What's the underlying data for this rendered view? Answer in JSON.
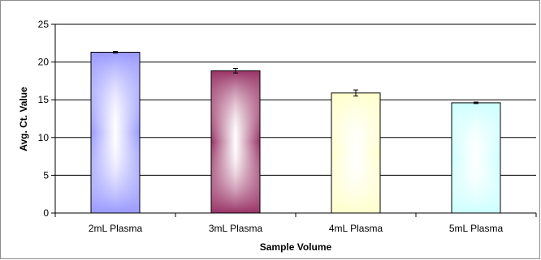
{
  "chart_data": {
    "type": "bar",
    "title": "",
    "xlabel": "Sample Volume",
    "ylabel": "Avg. Ct. Value",
    "ylim": [
      0,
      25
    ],
    "yticks": [
      0,
      5,
      10,
      15,
      20,
      25
    ],
    "grid": "horizontal",
    "categories": [
      "2mL Plasma",
      "3mL Plasma",
      "4mL Plasma",
      "5mL Plasma"
    ],
    "values": [
      21.3,
      18.85,
      15.9,
      14.6
    ],
    "errors": [
      0.1,
      0.3,
      0.4,
      0.1
    ],
    "colors": [
      "#9999ff",
      "#993366",
      "#ffffcc",
      "#ccffff"
    ]
  }
}
